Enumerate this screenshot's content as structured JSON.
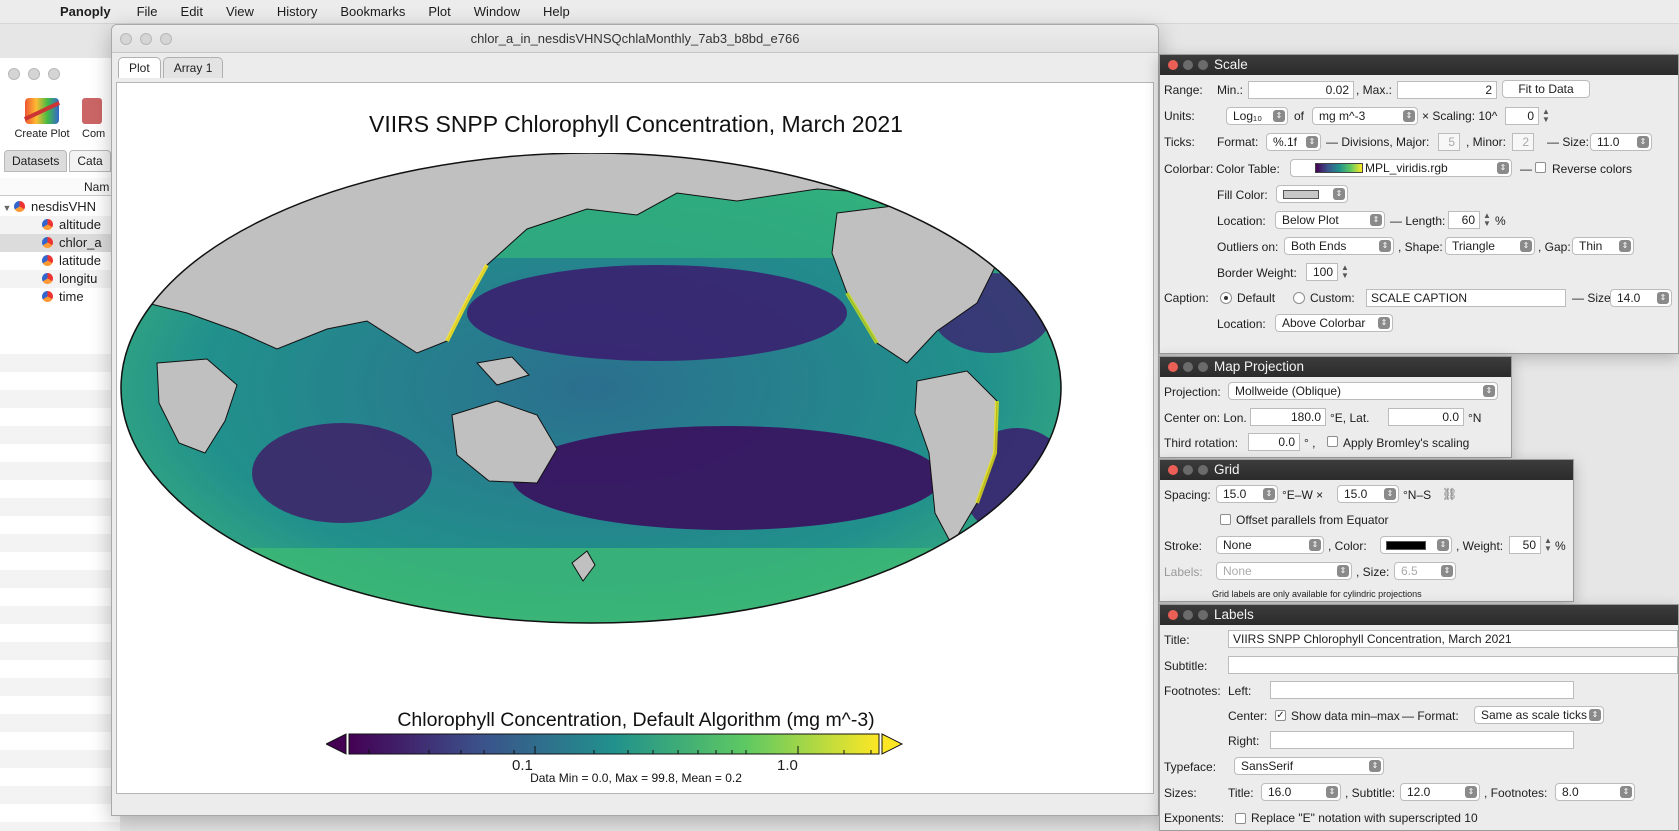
{
  "menubar": {
    "app_name": "Panoply",
    "items": [
      "File",
      "Edit",
      "View",
      "History",
      "Bookmarks",
      "Plot",
      "Window",
      "Help"
    ]
  },
  "browser": {
    "toolbar": {
      "create_plot": "Create Plot",
      "combine_plot": "Com"
    },
    "tabs": [
      "Datasets",
      "Cata"
    ],
    "column_header": "Nam",
    "tree": [
      {
        "label": "nesdisVHN",
        "type": "root"
      },
      {
        "label": "altitude",
        "type": "var"
      },
      {
        "label": "chlor_a",
        "type": "var",
        "selected": true
      },
      {
        "label": "latitude",
        "type": "var"
      },
      {
        "label": "longitu",
        "type": "var"
      },
      {
        "label": "time",
        "type": "var"
      }
    ]
  },
  "plot_window": {
    "title": "chlor_a_in_nesdisVHNSQchlaMonthly_7ab3_b8bd_e766",
    "tabs": [
      "Plot",
      "Array 1"
    ],
    "plot_title": "VIIRS SNPP Chlorophyll Concentration, March 2021",
    "scale_caption": "Chlorophyll Concentration, Default Algorithm (mg m^-3)",
    "colorbar": {
      "ticks": [
        "0.1",
        "1.0"
      ],
      "colors": [
        "#440154",
        "#3b528b",
        "#21918c",
        "#5ec962",
        "#fde725"
      ],
      "scale": "log",
      "range": [
        0.02,
        2
      ]
    },
    "data_stats": "Data Min = 0.0, Max = 99.8, Mean = 0.2",
    "map": {
      "projection": "Mollweide (Oblique)",
      "land_color": "#c0c0c0",
      "ocean_palette": "MPL_viridis"
    }
  },
  "scale_panel": {
    "title": "Scale",
    "range_label": "Range:",
    "min_label": "Min.:",
    "min_value": "0.02",
    "max_label": ", Max.:",
    "max_value": "2",
    "fit_button": "Fit to Data",
    "units_label": "Units:",
    "units_log": "Log₁₀",
    "of_label": "of",
    "units_value": "mg m^-3",
    "scaling_label": "× Scaling: 10^",
    "scaling_value": "0",
    "ticks_label": "Ticks:",
    "format_label": "Format:",
    "format_value": "%.1f",
    "divisions_label": "— Divisions, Major:",
    "major_value": "5",
    "minor_label": ", Minor:",
    "minor_value": "2",
    "size_label": "— Size:",
    "tick_size": "11.0",
    "colorbar_label": "Colorbar:",
    "color_table_label": "Color Table:",
    "color_table_value": "MPL_viridis.rgb",
    "reverse_label": "Reverse colors",
    "fill_color_label": "Fill Color:",
    "location_label": "Location:",
    "location_value": "Below Plot",
    "length_label": "— Length:",
    "length_value": "60",
    "percent": "%",
    "outliers_label": "Outliers on:",
    "outliers_value": "Both Ends",
    "shape_label": ", Shape:",
    "shape_value": "Triangle",
    "gap_label": ", Gap:",
    "gap_value": "Thin",
    "border_label": "Border Weight:",
    "border_value": "100",
    "caption_label": "Caption:",
    "default_label": "Default",
    "custom_label": "Custom:",
    "custom_value": "SCALE CAPTION",
    "caption_size_label": "— Size:",
    "caption_size": "14.0",
    "caption_location_label": "Location:",
    "caption_location_value": "Above Colorbar"
  },
  "map_panel": {
    "title": "Map Projection",
    "projection_label": "Projection:",
    "projection_value": "Mollweide (Oblique)",
    "center_label": "Center on: Lon.",
    "lon_value": "180.0",
    "lon_unit": "°E, Lat.",
    "lat_value": "0.0",
    "lat_unit": "°N",
    "third_label": "Third rotation:",
    "third_value": "0.0",
    "third_unit": "° ,",
    "bromley_label": "Apply Bromley's scaling"
  },
  "grid_panel": {
    "title": "Grid",
    "spacing_label": "Spacing:",
    "ew_value": "15.0",
    "ew_unit": "°E–W ×",
    "ns_value": "15.0",
    "ns_unit": "°N–S",
    "offset_label": "Offset parallels from Equator",
    "stroke_label": "Stroke:",
    "stroke_value": "None",
    "color_label": ", Color:",
    "weight_label": ", Weight:",
    "weight_value": "50",
    "percent": "%",
    "labels_label": "Labels:",
    "labels_value": "None",
    "size_label": ", Size:",
    "size_value": "6.5",
    "note": "Grid labels are only available for cylindric projections"
  },
  "labels_panel": {
    "title": "Labels",
    "title_label": "Title:",
    "title_value": "VIIRS SNPP Chlorophyll Concentration, March 2021",
    "subtitle_label": "Subtitle:",
    "subtitle_value": "",
    "footnotes_label": "Footnotes:",
    "left_label": "Left:",
    "left_value": "",
    "center_label": "Center:",
    "show_minmax_label": "Show data min–max",
    "format_label": "— Format:",
    "format_value": "Same as scale ticks",
    "right_label": "Right:",
    "right_value": "",
    "typeface_label": "Typeface:",
    "typeface_value": "SansSerif",
    "sizes_label": "Sizes:",
    "title_size_label": "Title:",
    "title_size": "16.0",
    "subtitle_size_label": ", Subtitle:",
    "subtitle_size": "12.0",
    "footnote_size_label": ", Footnotes:",
    "footnote_size": "8.0",
    "exponents_label": "Exponents:",
    "exponents_option": "Replace \"E\" notation with superscripted 10"
  }
}
